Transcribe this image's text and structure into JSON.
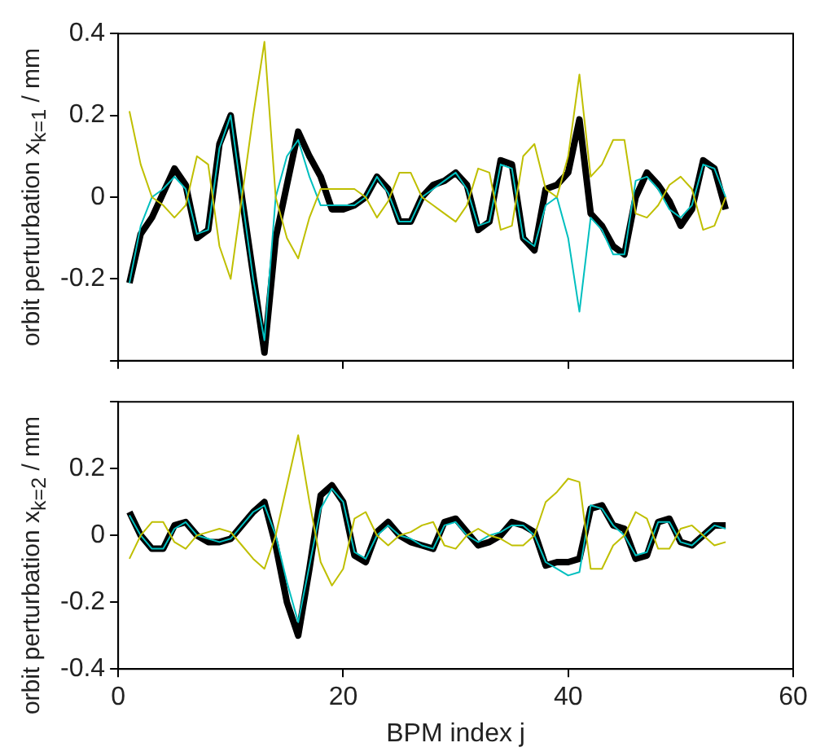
{
  "chart_data": [
    {
      "type": "line",
      "ylabel": "orbit perturbation x$_{k=1}$ / mm",
      "xlim": [
        0,
        60
      ],
      "xticks": [
        0,
        20,
        40,
        60
      ],
      "ylim": [
        -0.4,
        0.4
      ],
      "yticks": [
        {
          "value": -0.4,
          "label": null
        },
        -0.2,
        0,
        0.2,
        0.4
      ],
      "tick_labels": "y",
      "grid": false,
      "legend": false,
      "marker": "none",
      "line_style": "solid",
      "x": [
        1,
        2,
        3,
        4,
        5,
        6,
        7,
        8,
        9,
        10,
        11,
        12,
        13,
        14,
        15,
        16,
        17,
        18,
        19,
        20,
        21,
        22,
        23,
        24,
        25,
        26,
        27,
        28,
        29,
        30,
        31,
        32,
        33,
        34,
        35,
        36,
        37,
        38,
        39,
        40,
        41,
        42,
        43,
        44,
        45,
        46,
        47,
        48,
        49,
        50,
        51,
        52,
        53,
        54
      ],
      "series": [
        {
          "color": "#bfbf00",
          "values": [
            0.21,
            0.08,
            0.0,
            -0.02,
            -0.05,
            -0.02,
            0.1,
            0.08,
            -0.12,
            -0.2,
            0.0,
            0.2,
            0.38,
            0.0,
            -0.1,
            -0.15,
            -0.05,
            0.02,
            0.02,
            0.02,
            0.02,
            0.0,
            -0.05,
            -0.01,
            0.06,
            0.06,
            0.0,
            -0.02,
            -0.04,
            -0.06,
            -0.02,
            0.07,
            0.06,
            -0.08,
            -0.07,
            0.1,
            0.13,
            0.02,
            0.0,
            0.1,
            0.3,
            0.05,
            0.08,
            0.14,
            0.14,
            -0.04,
            -0.05,
            -0.02,
            0.03,
            0.05,
            0.02,
            -0.08,
            -0.07,
            0.0
          ]
        },
        {
          "color": "#00bfbf",
          "values": [
            -0.21,
            -0.07,
            0.0,
            0.02,
            0.05,
            0.02,
            -0.09,
            -0.08,
            0.12,
            0.2,
            0.0,
            -0.2,
            -0.35,
            0.0,
            0.1,
            0.14,
            0.05,
            -0.02,
            -0.02,
            -0.02,
            -0.02,
            0.0,
            0.05,
            0.01,
            -0.06,
            -0.06,
            0.0,
            0.02,
            0.04,
            0.06,
            0.02,
            -0.07,
            -0.06,
            0.08,
            0.07,
            -0.1,
            -0.12,
            -0.02,
            0.0,
            -0.1,
            -0.28,
            -0.05,
            -0.08,
            -0.14,
            -0.14,
            0.04,
            0.05,
            0.02,
            -0.03,
            -0.05,
            -0.02,
            0.08,
            0.07,
            0.0
          ]
        },
        {
          "color": "#000000",
          "values": [
            -0.21,
            -0.09,
            -0.05,
            0.01,
            0.07,
            0.03,
            -0.1,
            -0.08,
            0.13,
            0.2,
            0.0,
            -0.19,
            -0.38,
            -0.1,
            0.03,
            0.16,
            0.1,
            0.05,
            -0.03,
            -0.03,
            -0.02,
            0.0,
            0.05,
            0.02,
            -0.06,
            -0.06,
            0.0,
            0.03,
            0.04,
            0.06,
            0.03,
            -0.08,
            -0.06,
            0.09,
            0.08,
            -0.1,
            -0.13,
            0.02,
            0.03,
            0.06,
            0.19,
            -0.04,
            -0.07,
            -0.12,
            -0.14,
            0.0,
            0.06,
            0.03,
            -0.01,
            -0.07,
            -0.03,
            0.09,
            0.07,
            -0.03
          ]
        }
      ]
    },
    {
      "type": "line",
      "xlabel": "BPM index j",
      "ylabel": "orbit perturbation x$_{k=2}$ / mm",
      "xlim": [
        0,
        60
      ],
      "xticks": [
        0,
        20,
        40,
        60
      ],
      "ylim": [
        -0.4,
        0.4
      ],
      "yticks": [
        -0.4,
        -0.2,
        0,
        0.2,
        {
          "value": 0.4,
          "label": null
        }
      ],
      "grid": false,
      "legend": false,
      "marker": "none",
      "line_style": "solid",
      "x": [
        1,
        2,
        3,
        4,
        5,
        6,
        7,
        8,
        9,
        10,
        11,
        12,
        13,
        14,
        15,
        16,
        17,
        18,
        19,
        20,
        21,
        22,
        23,
        24,
        25,
        26,
        27,
        28,
        29,
        30,
        31,
        32,
        33,
        34,
        35,
        36,
        37,
        38,
        39,
        40,
        41,
        42,
        43,
        44,
        45,
        46,
        47,
        48,
        49,
        50,
        51,
        52,
        53,
        54
      ],
      "series": [
        {
          "color": "#bfbf00",
          "values": [
            -0.07,
            0.0,
            0.04,
            0.04,
            -0.02,
            -0.04,
            0.0,
            0.01,
            0.02,
            0.01,
            -0.03,
            -0.07,
            -0.1,
            0.0,
            0.15,
            0.3,
            0.1,
            -0.08,
            -0.15,
            -0.1,
            0.05,
            0.07,
            0.0,
            -0.03,
            0.0,
            0.01,
            0.03,
            0.04,
            -0.03,
            -0.04,
            0.0,
            0.02,
            0.0,
            -0.01,
            -0.03,
            -0.03,
            0.0,
            0.1,
            0.13,
            0.17,
            0.16,
            -0.1,
            -0.1,
            -0.03,
            0.0,
            0.07,
            0.05,
            -0.04,
            -0.04,
            0.02,
            0.03,
            0.0,
            -0.03,
            -0.02
          ]
        },
        {
          "color": "#00bfbf",
          "values": [
            0.06,
            0.0,
            -0.04,
            -0.04,
            0.02,
            0.04,
            0.0,
            -0.01,
            -0.02,
            -0.01,
            0.03,
            0.07,
            0.09,
            0.0,
            -0.14,
            -0.26,
            -0.09,
            0.08,
            0.14,
            0.1,
            -0.05,
            -0.07,
            0.0,
            0.03,
            0.0,
            -0.01,
            -0.03,
            -0.04,
            0.03,
            0.04,
            0.0,
            -0.02,
            0.0,
            0.01,
            0.03,
            0.03,
            0.0,
            -0.08,
            -0.1,
            -0.12,
            -0.11,
            0.09,
            0.08,
            0.03,
            0.0,
            -0.06,
            -0.05,
            0.04,
            0.04,
            -0.02,
            -0.03,
            0.0,
            0.03,
            0.02
          ]
        },
        {
          "color": "#000000",
          "values": [
            0.07,
            0.0,
            -0.04,
            -0.04,
            0.03,
            0.04,
            0.0,
            -0.02,
            -0.02,
            -0.01,
            0.03,
            0.07,
            0.1,
            -0.03,
            -0.2,
            -0.3,
            -0.1,
            0.12,
            0.15,
            0.1,
            -0.06,
            -0.08,
            0.01,
            0.04,
            0.0,
            -0.02,
            -0.03,
            -0.04,
            0.04,
            0.05,
            0.01,
            -0.03,
            -0.02,
            0.0,
            0.04,
            0.03,
            0.01,
            -0.09,
            -0.08,
            -0.08,
            -0.07,
            0.08,
            0.09,
            0.03,
            0.02,
            -0.07,
            -0.06,
            0.04,
            0.05,
            -0.02,
            -0.03,
            0.0,
            0.03,
            0.03
          ]
        }
      ]
    }
  ]
}
